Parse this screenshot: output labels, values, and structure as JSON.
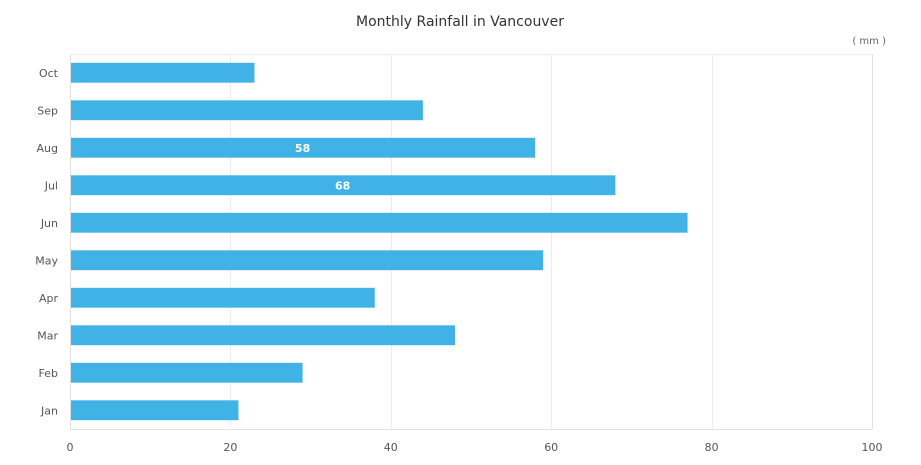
{
  "chart_data": {
    "type": "bar",
    "orientation": "horizontal",
    "title": "Monthly Rainfall in Vancouver",
    "unit_label": "( mm )",
    "categories": [
      "Oct",
      "Sep",
      "Aug",
      "Jul",
      "Jun",
      "May",
      "Apr",
      "Mar",
      "Feb",
      "Jan"
    ],
    "values": [
      23,
      44,
      58,
      68,
      77,
      59,
      38,
      48,
      29,
      21
    ],
    "data_labels": [
      {
        "category": "Aug",
        "text": "58"
      },
      {
        "category": "Jul",
        "text": "68"
      }
    ],
    "xlim": [
      0,
      100
    ],
    "x_ticks": [
      0,
      20,
      40,
      60,
      80,
      100
    ],
    "grid": true,
    "colors": {
      "bar": "#41b2e6",
      "grid": "#ececec",
      "axis": "#e0e0e0"
    }
  }
}
